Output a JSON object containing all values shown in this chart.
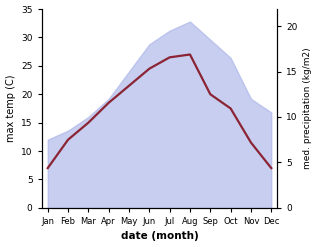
{
  "months": [
    "Jan",
    "Feb",
    "Mar",
    "Apr",
    "May",
    "Jun",
    "Jul",
    "Aug",
    "Sep",
    "Oct",
    "Nov",
    "Dec"
  ],
  "month_indices": [
    0,
    1,
    2,
    3,
    4,
    5,
    6,
    7,
    8,
    9,
    10,
    11
  ],
  "max_temp": [
    7.0,
    12.0,
    15.0,
    18.5,
    21.5,
    24.5,
    26.5,
    27.0,
    20.0,
    17.5,
    11.5,
    7.0
  ],
  "precipitation": [
    7.5,
    8.5,
    10.0,
    12.0,
    15.0,
    18.0,
    19.5,
    20.5,
    18.5,
    16.5,
    12.0,
    10.5
  ],
  "temp_ylim": [
    0,
    35
  ],
  "precip_ylim": [
    0,
    21.875
  ],
  "temp_yticks": [
    0,
    5,
    10,
    15,
    20,
    25,
    30,
    35
  ],
  "precip_yticks": [
    0,
    5,
    10,
    15,
    20
  ],
  "fill_color": "#aab4e8",
  "fill_alpha": 0.65,
  "line_color": "#8b2535",
  "line_width": 1.6,
  "xlabel": "date (month)",
  "ylabel_left": "max temp (C)",
  "ylabel_right": "med. precipitation (kg/m2)",
  "background_color": "#ffffff"
}
